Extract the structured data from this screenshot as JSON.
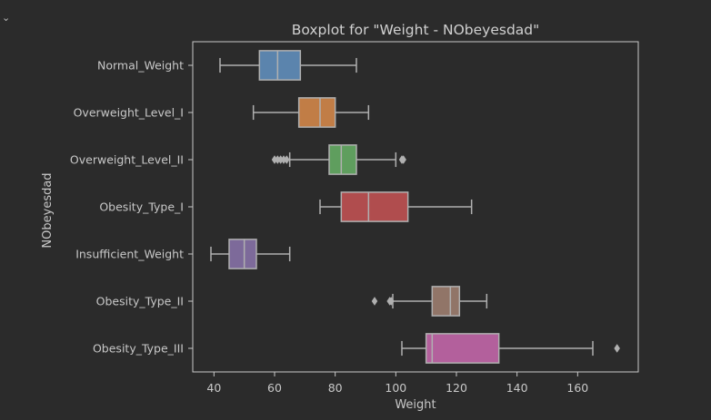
{
  "cell": {
    "toggle_icon": "chevron-down-icon"
  },
  "chart_data": {
    "type": "boxplot",
    "orientation": "horizontal",
    "title": "Boxplot for \"Weight - NObeyesdad\"",
    "xlabel": "Weight",
    "ylabel": "NObeyesdad",
    "xlim": [
      33,
      180
    ],
    "xticks": [
      40,
      60,
      80,
      100,
      120,
      140,
      160
    ],
    "categories": [
      "Normal_Weight",
      "Overweight_Level_I",
      "Overweight_Level_II",
      "Obesity_Type_I",
      "Insufficient_Weight",
      "Obesity_Type_II",
      "Obesity_Type_III"
    ],
    "boxes": [
      {
        "category": "Normal_Weight",
        "whisker_low": 42,
        "q1": 55,
        "median": 61,
        "q3": 68.5,
        "whisker_high": 87,
        "outliers": [],
        "color": "#5b84ad"
      },
      {
        "category": "Overweight_Level_I",
        "whisker_low": 53,
        "q1": 68,
        "median": 75,
        "q3": 80,
        "whisker_high": 91,
        "outliers": [],
        "color": "#c17d46"
      },
      {
        "category": "Overweight_Level_II",
        "whisker_low": 65,
        "q1": 78,
        "median": 82,
        "q3": 87,
        "whisker_high": 100,
        "outliers": [
          60,
          61,
          62,
          63,
          64,
          102,
          102.5
        ],
        "color": "#5f9e5e"
      },
      {
        "category": "Obesity_Type_I",
        "whisker_low": 75,
        "q1": 82,
        "median": 91,
        "q3": 104,
        "whisker_high": 125,
        "outliers": [],
        "color": "#b04d4e"
      },
      {
        "category": "Insufficient_Weight",
        "whisker_low": 39,
        "q1": 45,
        "median": 50,
        "q3": 54,
        "whisker_high": 65,
        "outliers": [],
        "color": "#7d6a9a"
      },
      {
        "category": "Obesity_Type_II",
        "whisker_low": 99,
        "q1": 112,
        "median": 118,
        "q3": 121,
        "whisker_high": 130,
        "outliers": [
          93,
          98,
          98.5
        ],
        "color": "#917568"
      },
      {
        "category": "Obesity_Type_III",
        "whisker_low": 102,
        "q1": 110,
        "median": 112,
        "q3": 134,
        "whisker_high": 165,
        "outliers": [
          173
        ],
        "color": "#b3609c"
      }
    ],
    "colors": {
      "background": "#2b2b2b",
      "frame": "#c8c8c8",
      "whisker": "#b0b0b0",
      "text": "#c8c8c8"
    }
  }
}
